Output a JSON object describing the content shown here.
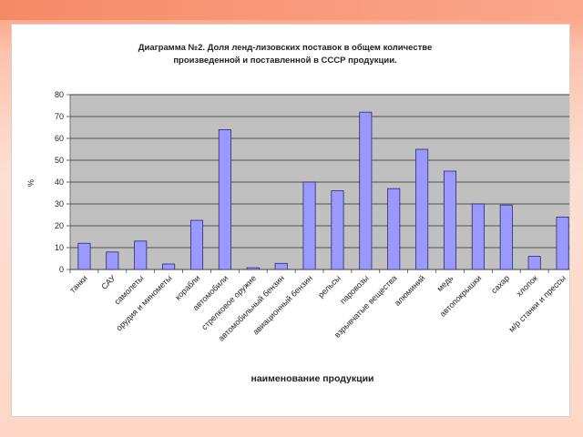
{
  "chart_data": {
    "type": "bar",
    "title": "Диаграмма №2. Доля ленд-лизовских поставок в общем количестве произведенной и поставленной в СССР продукции.",
    "title_lines": [
      "Диаграмма №2. Доля ленд-лизовских поставок в общем количестве",
      "произведенной и поставленной в СССР продукции."
    ],
    "xlabel": "наименование продукции",
    "ylabel": "%",
    "ylim": [
      0,
      80
    ],
    "yticks": [
      0,
      10,
      20,
      30,
      40,
      50,
      60,
      70,
      80
    ],
    "grid": true,
    "legend": "none",
    "categories": [
      "танки",
      "САУ",
      "самолеты",
      "орудия и минометы",
      "корабли",
      "автомобили",
      "стрелковое оружие",
      "автомобильный бензин",
      "авиационный бензин",
      "рельсы",
      "паровозы",
      "взрывчатые вещества",
      "алюминий",
      "медь",
      "автопокрышки",
      "сахар",
      "хлопок",
      "м/р станки и прессы"
    ],
    "values": [
      12,
      8,
      13,
      2.5,
      22.5,
      64,
      0.8,
      2.8,
      40,
      36,
      72,
      37,
      55,
      45,
      30,
      29.5,
      6,
      24
    ],
    "colors": {
      "bar_fill": "#9999ff",
      "bar_stroke": "#2a2a6a",
      "plot_bg": "#c0c0c0",
      "grid": "#2b2b2b"
    }
  }
}
